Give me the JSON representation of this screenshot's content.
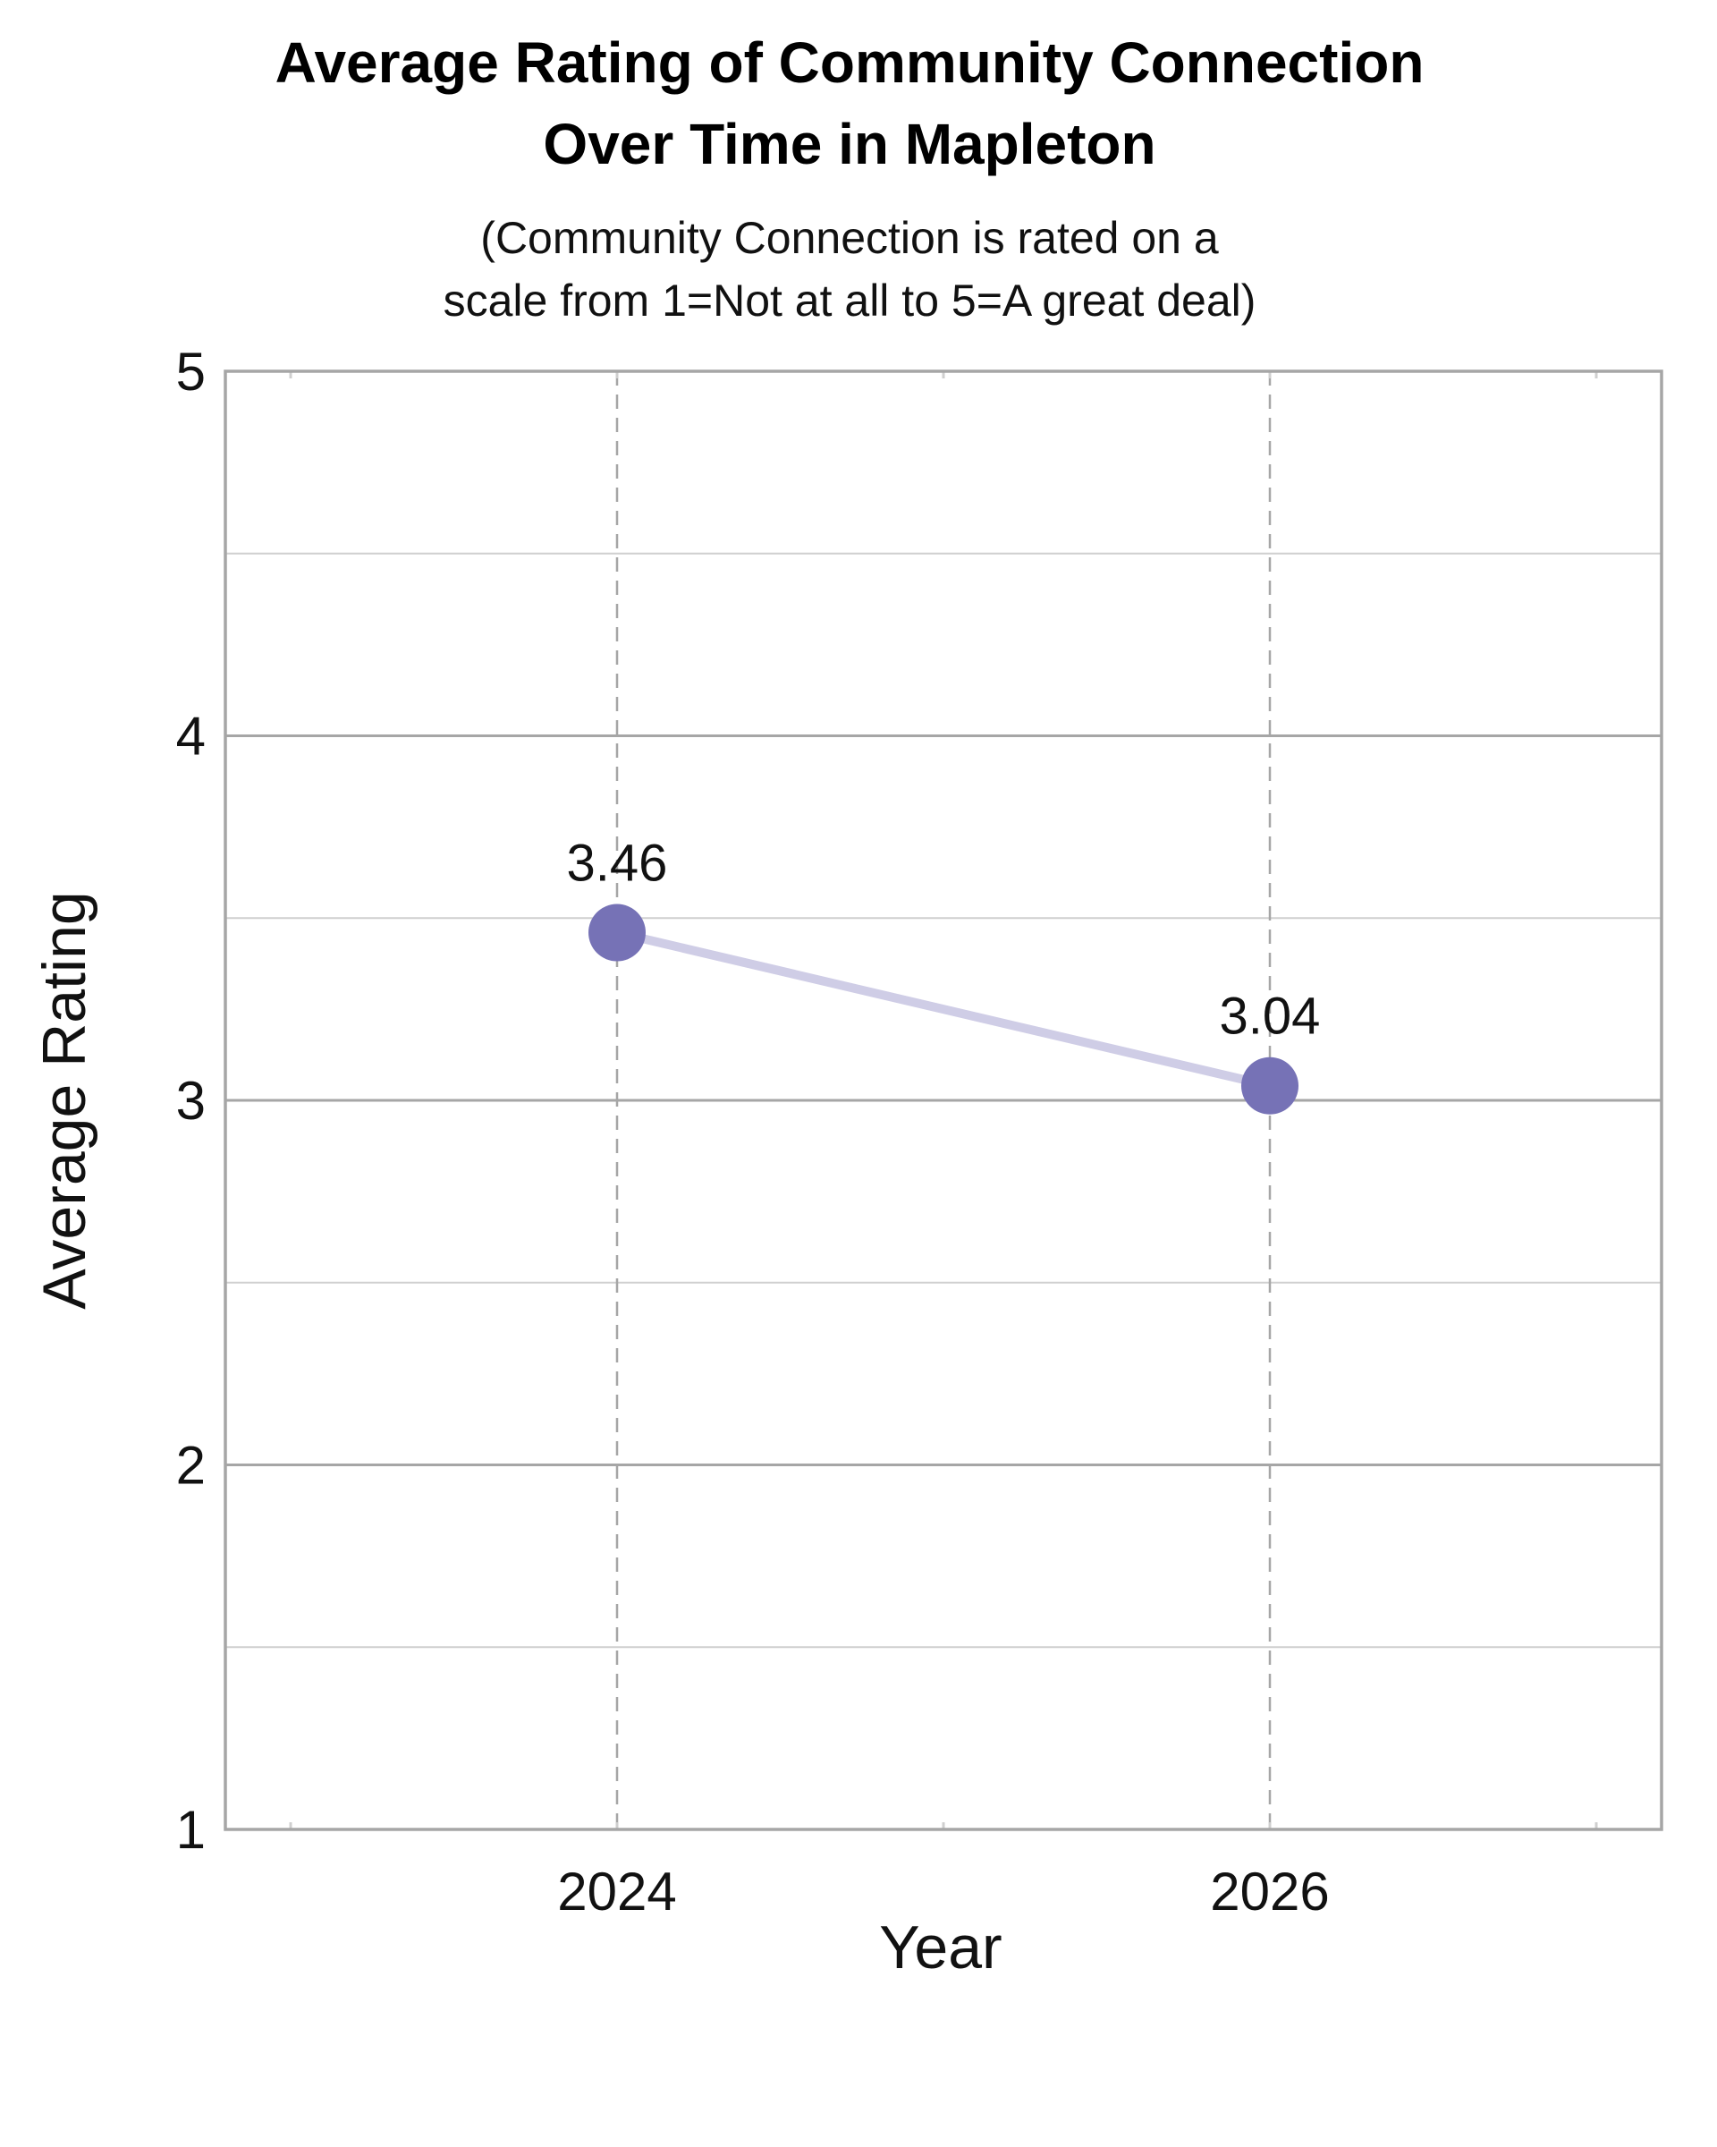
{
  "chart_data": {
    "type": "line",
    "title_lines": [
      "Average Rating of Community Connection",
      "Over Time in Mapleton"
    ],
    "subtitle_lines": [
      "(Community Connection is rated on a",
      "scale from 1=Not at all to 5=A great deal)"
    ],
    "xlabel": "Year",
    "ylabel": "Average Rating",
    "x_ticks": [
      "2024",
      "2026"
    ],
    "y_ticks": [
      "1",
      "2",
      "3",
      "4",
      "5"
    ],
    "xlim": [
      2022.8,
      2027.2
    ],
    "ylim": [
      1,
      5
    ],
    "grid": true,
    "series": [
      {
        "x": [
          2024,
          2026
        ],
        "values": [
          3.46,
          3.04
        ],
        "labels": [
          "3.46",
          "3.04"
        ]
      }
    ],
    "colors": {
      "marker": "#7672b6",
      "line": "#cfcde6",
      "frame": "#a6a6a6",
      "grid_major": "#a6a6a6",
      "grid_minor": "#cfcfcf",
      "vgrid": "#a6a6a6"
    }
  }
}
